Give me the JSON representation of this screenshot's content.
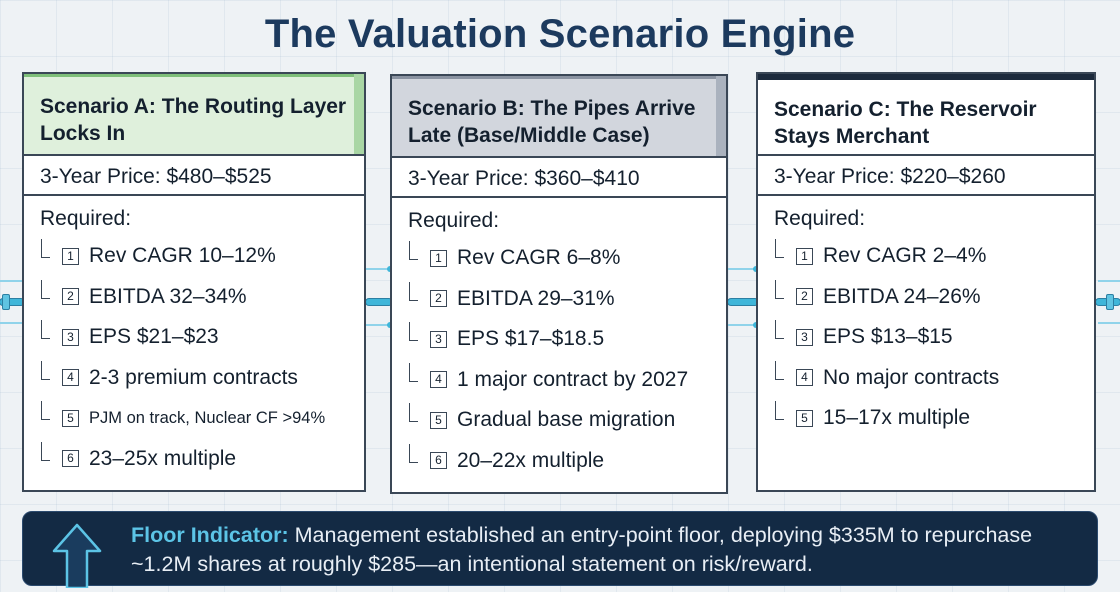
{
  "title": "The Valuation Scenario Engine",
  "scenarios": [
    {
      "title": "Scenario A: The Routing Layer Locks In",
      "price": "3-Year Price: $480–$525",
      "required_label": "Required:",
      "items": [
        {
          "num": "1",
          "text": "Rev CAGR 10–12%"
        },
        {
          "num": "2",
          "text": "EBITDA 32–34%"
        },
        {
          "num": "3",
          "text": "EPS $21–$23"
        },
        {
          "num": "4",
          "text": "2-3 premium contracts"
        },
        {
          "num": "5",
          "text": "PJM on track, Nuclear CF >94%"
        },
        {
          "num": "6",
          "text": "23–25x multiple"
        }
      ]
    },
    {
      "title": "Scenario B: The Pipes Arrive Late (Base/Middle Case)",
      "price": "3-Year Price: $360–$410",
      "required_label": "Required:",
      "items": [
        {
          "num": "1",
          "text": "Rev CAGR 6–8%"
        },
        {
          "num": "2",
          "text": "EBITDA 29–31%"
        },
        {
          "num": "3",
          "text": "EPS $17–$18.5"
        },
        {
          "num": "4",
          "text": "1 major contract by 2027"
        },
        {
          "num": "5",
          "text": "Gradual base migration"
        },
        {
          "num": "6",
          "text": "20–22x multiple"
        }
      ]
    },
    {
      "title": "Scenario C: The Reservoir Stays Merchant",
      "price": "3-Year Price: $220–$260",
      "required_label": "Required:",
      "items": [
        {
          "num": "1",
          "text": "Rev CAGR 2–4%"
        },
        {
          "num": "2",
          "text": "EBITDA 24–26%"
        },
        {
          "num": "3",
          "text": "EPS $13–$15"
        },
        {
          "num": "4",
          "text": "No major contracts"
        },
        {
          "num": "5",
          "text": "15–17x multiple"
        }
      ]
    }
  ],
  "floor": {
    "label": "Floor Indicator:",
    "text": " Management established an entry-point floor, deploying $335M to repurchase ~1.2M shares at roughly $285—an intentional statement on risk/reward.",
    "icon": "up-arrow-icon"
  },
  "colors": {
    "title": "#1c3a5e",
    "scenario_a_header": "#dff0dc",
    "scenario_b_header": "#d2d6dd",
    "scenario_c_header": "#ffffff",
    "floor_bg": "#132a44",
    "floor_label": "#5cc4e6",
    "connector": "#3fb6d9"
  }
}
